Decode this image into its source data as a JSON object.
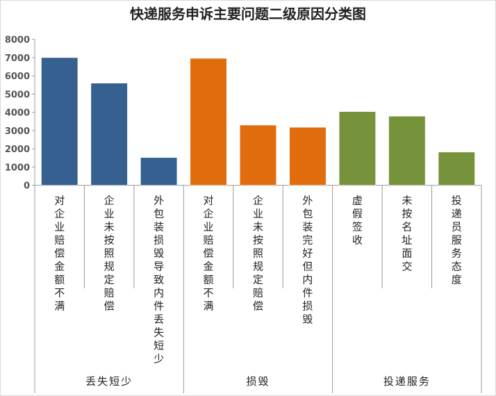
{
  "chart_data": {
    "type": "bar",
    "title": "快递服务申诉主要问题二级原因分类图",
    "ylim": [
      0,
      8000
    ],
    "yticks": [
      "0",
      "1000",
      "2000",
      "3000",
      "4000",
      "5000",
      "6000",
      "7000",
      "8000"
    ],
    "grid": false,
    "legend": "none",
    "groups": [
      {
        "name": "丢失短少",
        "color": "#35608f",
        "categories": [
          "对企业赔偿金额不满",
          "企业未按照规定赔偿",
          "外包装损毁导致内件丢失短少"
        ],
        "values": [
          7000,
          5600,
          1520
        ]
      },
      {
        "name": "损毁",
        "color": "#e06c0e",
        "categories": [
          "对企业赔偿金额不满",
          "企业未按照规定赔偿",
          "外包装完好但内件损毁"
        ],
        "values": [
          6960,
          3300,
          3180
        ]
      },
      {
        "name": "投递服务",
        "color": "#76933c",
        "categories": [
          "虚假签收",
          "未按名址面交",
          "投递员服务态度"
        ],
        "values": [
          4040,
          3790,
          1820
        ]
      }
    ]
  }
}
